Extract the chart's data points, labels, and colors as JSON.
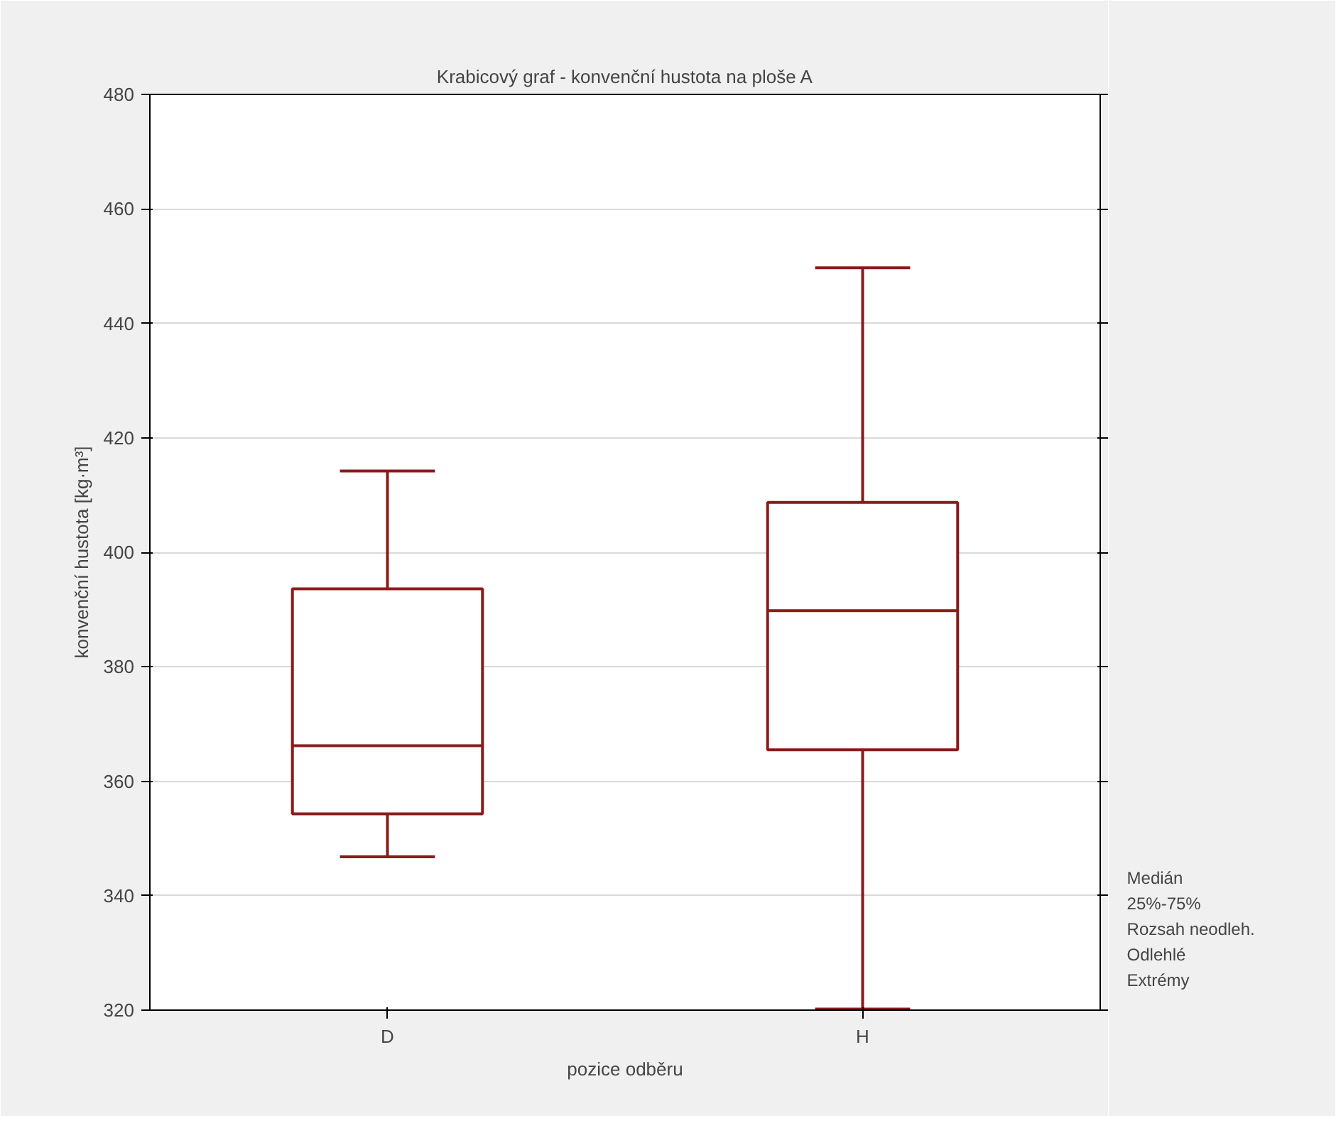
{
  "chart_data": {
    "type": "box",
    "title": "Krabicový graf - konvenční hustota na ploše A",
    "xlabel": "pozice odběru",
    "ylabel": "konvenční hustota [kg·m³]",
    "categories": [
      "D",
      "H"
    ],
    "series": [
      {
        "color": "#8b1a1a",
        "boxes": [
          {
            "low": 346.8,
            "q1": 354.3,
            "median": 366.2,
            "q3": 393.6,
            "high": 414.2
          },
          {
            "low": 320.2,
            "q1": 365.5,
            "median": 389.8,
            "q3": 408.7,
            "high": 449.7
          }
        ]
      }
    ],
    "ylim": [
      320,
      480
    ],
    "yticks": [
      320,
      340,
      360,
      380,
      400,
      420,
      440,
      460,
      480
    ],
    "grid": "y",
    "annotations": [
      "Medián",
      "25%-75%",
      "Rozsah neodleh.",
      "Odlehlé",
      "Extrémy"
    ]
  }
}
